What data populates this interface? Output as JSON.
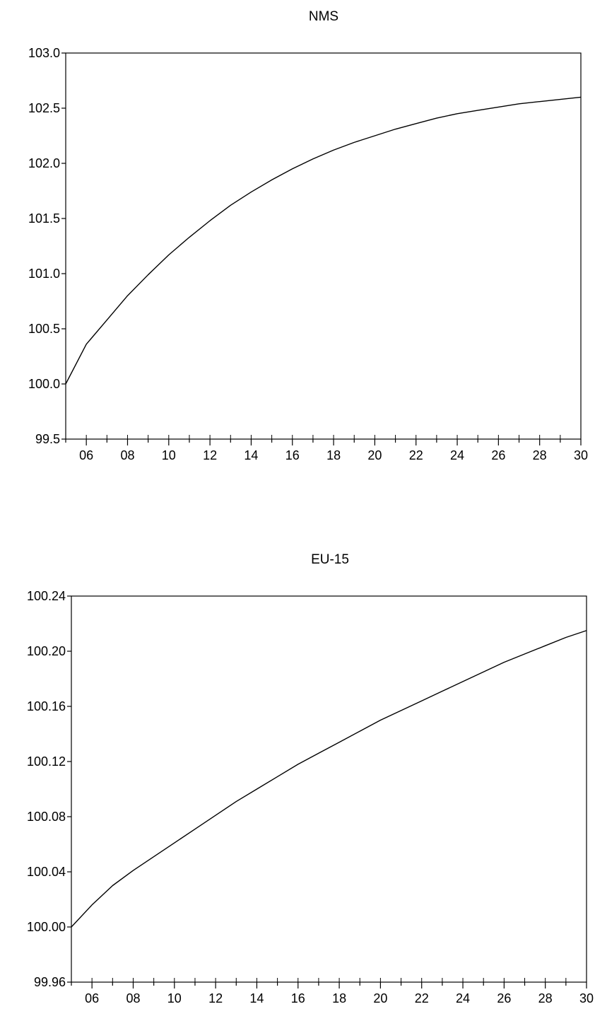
{
  "chart_data": [
    {
      "type": "line",
      "title": "NMS",
      "xlabel": "",
      "ylabel": "",
      "x": [
        2005,
        2006,
        2007,
        2008,
        2009,
        2010,
        2011,
        2012,
        2013,
        2014,
        2015,
        2016,
        2017,
        2018,
        2019,
        2020,
        2021,
        2022,
        2023,
        2024,
        2025,
        2026,
        2027,
        2028,
        2029,
        2030
      ],
      "xlim": [
        2005,
        2030
      ],
      "ylim": [
        99.5,
        103.0
      ],
      "y_ticks": [
        "99.5",
        "100.0",
        "100.5",
        "101.0",
        "101.5",
        "102.0",
        "102.5",
        "103.0"
      ],
      "x_tick_labels": [
        "06",
        "08",
        "10",
        "12",
        "14",
        "16",
        "18",
        "20",
        "22",
        "24",
        "26",
        "28",
        "30"
      ],
      "series": [
        {
          "values": [
            100.0,
            100.36,
            100.58,
            100.8,
            100.99,
            101.17,
            101.33,
            101.48,
            101.62,
            101.74,
            101.85,
            101.95,
            102.04,
            102.12,
            102.19,
            102.25,
            102.31,
            102.36,
            102.41,
            102.45,
            102.48,
            102.51,
            102.54,
            102.56,
            102.58,
            102.6
          ]
        }
      ],
      "grid": false,
      "line_color": "#000000"
    },
    {
      "type": "line",
      "title": "EU-15",
      "xlabel": "",
      "ylabel": "",
      "x": [
        2005,
        2006,
        2007,
        2008,
        2009,
        2010,
        2011,
        2012,
        2013,
        2014,
        2015,
        2016,
        2017,
        2018,
        2019,
        2020,
        2021,
        2022,
        2023,
        2024,
        2025,
        2026,
        2027,
        2028,
        2029,
        2030
      ],
      "xlim": [
        2005,
        2030
      ],
      "ylim": [
        99.96,
        100.24
      ],
      "y_ticks": [
        "99.96",
        "100.00",
        "100.04",
        "100.08",
        "100.12",
        "100.16",
        "100.20",
        "100.24"
      ],
      "x_tick_labels": [
        "06",
        "08",
        "10",
        "12",
        "14",
        "16",
        "18",
        "20",
        "22",
        "24",
        "26",
        "28",
        "30"
      ],
      "series": [
        {
          "values": [
            100.0,
            100.016,
            100.03,
            100.041,
            100.051,
            100.061,
            100.071,
            100.081,
            100.091,
            100.1,
            100.109,
            100.118,
            100.126,
            100.134,
            100.142,
            100.15,
            100.157,
            100.164,
            100.171,
            100.178,
            100.185,
            100.192,
            100.198,
            100.204,
            100.21,
            100.215
          ]
        }
      ],
      "grid": false,
      "line_color": "#000000"
    }
  ]
}
